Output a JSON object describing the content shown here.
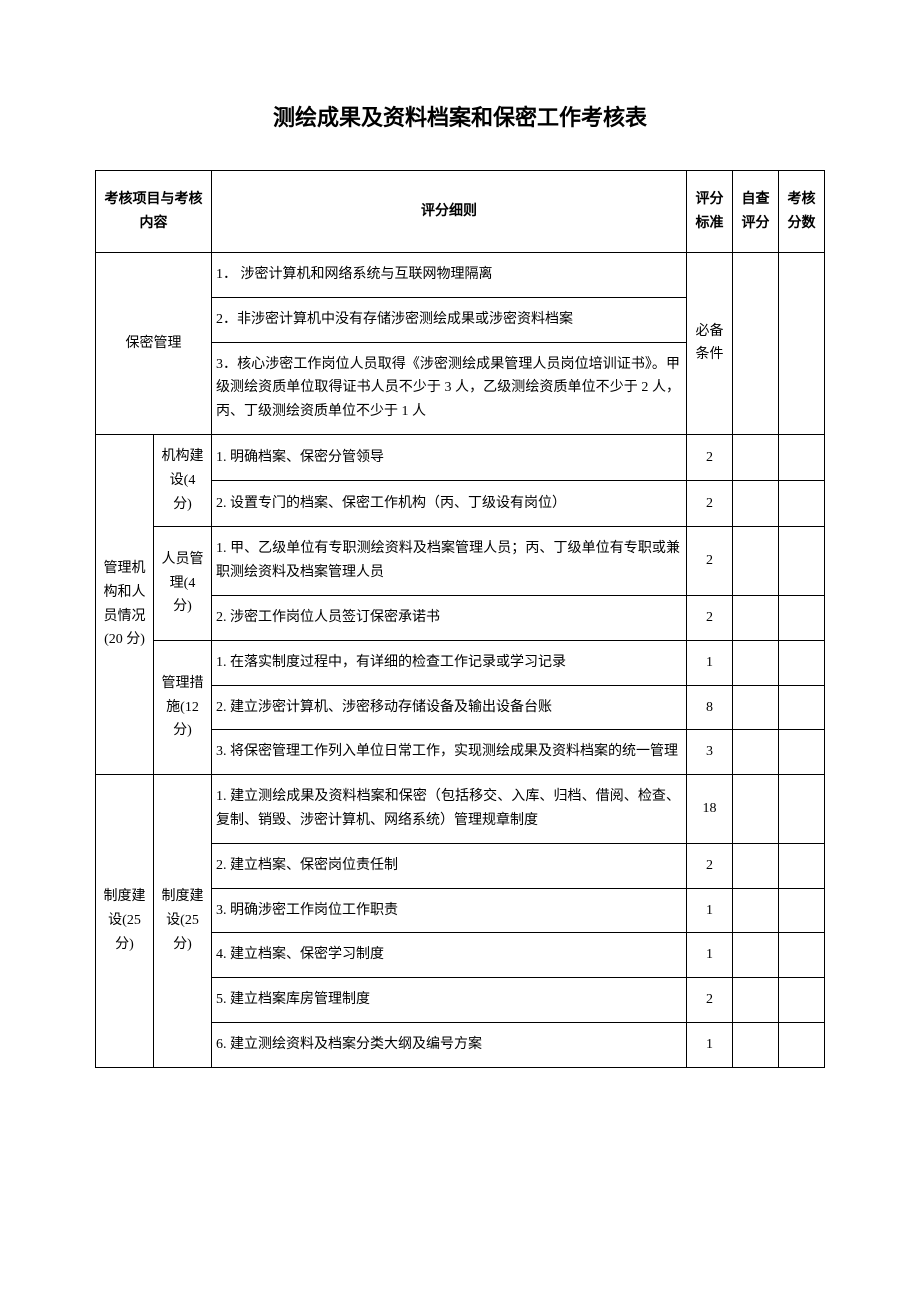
{
  "title": "测绘成果及资料档案和保密工作考核表",
  "headers": {
    "col1": "考核项目与考核内容",
    "col2": "评分细则",
    "col3": "评分标准",
    "col4": "自查评分",
    "col5": "考核分数"
  },
  "sec1": {
    "category": "保密管理",
    "d1": "1．  涉密计算机和网络系统与互联网物理隔离",
    "d2": "2．非涉密计算机中没有存储涉密测绘成果或涉密资料档案",
    "d3": "3．核心涉密工作岗位人员取得《涉密测绘成果管理人员岗位培训证书》。甲级测绘资质单位取得证书人员不少于 3 人，乙级测绘资质单位不少于 2 人，丙、丁级测绘资质单位不少于 1 人",
    "score": "必备条件"
  },
  "sec2": {
    "category": "管理机构和人员情况(20 分)",
    "sub1": "机构建设(4 分)",
    "sub1_d1": "1. 明确档案、保密分管领导",
    "sub1_s1": "2",
    "sub1_d2": "2. 设置专门的档案、保密工作机构（丙、丁级设有岗位）",
    "sub1_s2": "2",
    "sub2": "人员管理(4 分)",
    "sub2_d1": "1. 甲、乙级单位有专职测绘资料及档案管理人员；丙、丁级单位有专职或兼职测绘资料及档案管理人员",
    "sub2_s1": "2",
    "sub2_d2": "2. 涉密工作岗位人员签订保密承诺书",
    "sub2_s2": "2",
    "sub3": "管理措施(12 分)",
    "sub3_d1": "1. 在落实制度过程中，有详细的检查工作记录或学习记录",
    "sub3_s1": "1",
    "sub3_d2": "2. 建立涉密计算机、涉密移动存储设备及输出设备台账",
    "sub3_s2": "8",
    "sub3_d3": "3. 将保密管理工作列入单位日常工作，实现测绘成果及资料档案的统一管理",
    "sub3_s3": "3"
  },
  "sec3": {
    "category": "制度建设(25 分)",
    "sub1": "制度建设(25 分)",
    "d1": "1. 建立测绘成果及资料档案和保密（包括移交、入库、归档、借阅、检查、复制、销毁、涉密计算机、网络系统）管理规章制度",
    "s1": "18",
    "d2": "2. 建立档案、保密岗位责任制",
    "s2": "2",
    "d3": "3. 明确涉密工作岗位工作职责",
    "s3": "1",
    "d4": "4. 建立档案、保密学习制度",
    "s4": "1",
    "d5": "5. 建立档案库房管理制度",
    "s5": "2",
    "d6": "6. 建立测绘资料及档案分类大纲及编号方案",
    "s6": "1"
  }
}
